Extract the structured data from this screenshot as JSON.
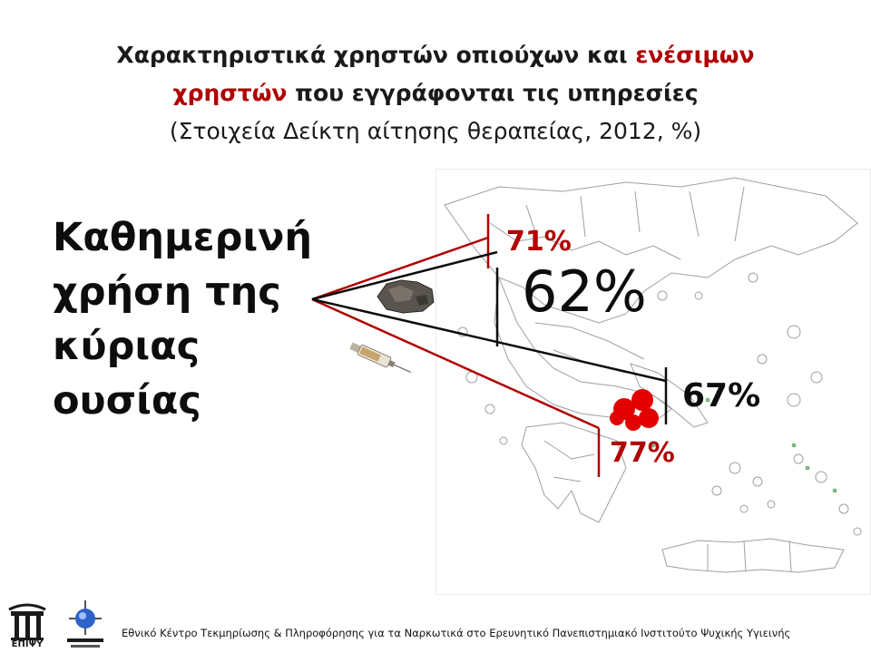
{
  "title": {
    "line1_part1": "Χαρακτηριστικά χρηστών οπιούχων και ",
    "line1_part2": "ενέσιμων",
    "line2_part1": "χρηστών",
    "line2_part2": " που εγγράφονται τις υπηρεσίες",
    "line3": "(Στοιχεία Δείκτη αίτησης θεραπείας, 2012, %)"
  },
  "side_label": [
    "Καθημερινή",
    "χρήση της",
    "κύριας",
    "ουσίας"
  ],
  "percentages": {
    "injectors_top": "71%",
    "opioid_top": "62%",
    "opioid_athens": "67%",
    "injectors_athens": "77%"
  },
  "footer": {
    "text": "Εθνικό Κέντρο Τεκμηρίωσης & Πληροφόρησης για τα Ναρκωτικά στο Ερευνητικό Πανεπιστημιακό Ινστιτούτο Ψυχικής Υγιεινής",
    "logo1_text": "ΕΠΙΨΥ"
  },
  "colors": {
    "red_accent": "#b00000",
    "black_lines": "#0d0d0d",
    "athens_blob": "#e30000",
    "map_border": "#9aa0a6"
  },
  "icons": {
    "heroin_image": "heroin-icon",
    "syringe_image": "syringe-icon",
    "greece_map": "greece-map-icon"
  }
}
